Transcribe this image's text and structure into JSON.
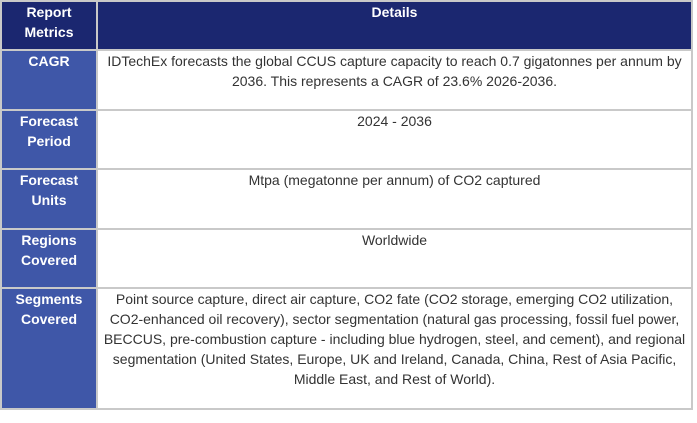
{
  "header": {
    "metric_label": "Report Metrics",
    "details_label": "Details"
  },
  "rows": [
    {
      "metric": "CAGR",
      "detail": "IDTechEx forecasts the global CCUS capture capacity to reach 0.7 gigatonnes per annum by 2036. This represents a CAGR of 23.6% 2026-2036."
    },
    {
      "metric": "Forecast Period",
      "detail": "2024 - 2036"
    },
    {
      "metric": "Forecast Units",
      "detail": "Mtpa (megatonne per annum) of CO2 captured"
    },
    {
      "metric": "Regions Covered",
      "detail": "Worldwide"
    },
    {
      "metric": "Segments Covered",
      "detail": "Point source capture, direct air capture, CO2 fate (CO2 storage, emerging CO2 utilization, CO2-enhanced oil recovery), sector segmentation (natural gas processing, fossil fuel power, BECCUS, pre-combustion capture - including blue hydrogen, steel, and cement), and regional segmentation (United States, Europe, UK and Ireland, Canada, China, Rest of Asia Pacific, Middle East, and Rest of World)."
    }
  ]
}
